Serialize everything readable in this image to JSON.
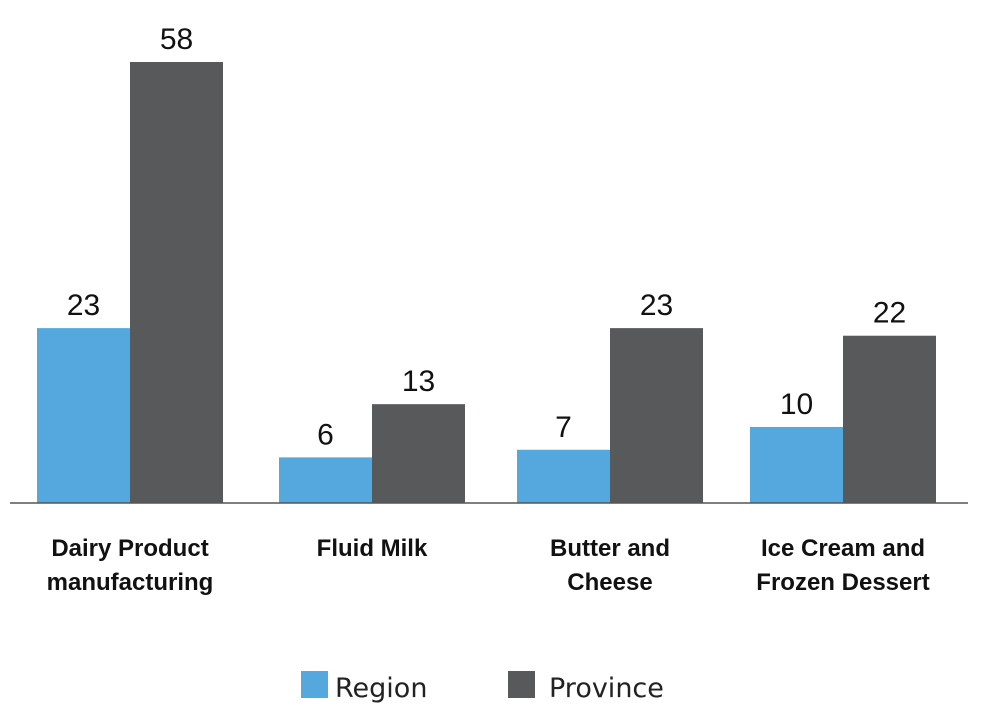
{
  "chart_data": {
    "type": "bar",
    "categories": [
      [
        "Dairy Product",
        "manufacturing"
      ],
      [
        "Fluid Milk"
      ],
      [
        "Butter and",
        "Cheese"
      ],
      [
        "Ice Cream and",
        "Frozen Dessert"
      ]
    ],
    "series": [
      {
        "name": "Region",
        "values": [
          23,
          6,
          7,
          10
        ],
        "color": "#55A8DD"
      },
      {
        "name": "Province",
        "values": [
          58,
          13,
          23,
          22
        ],
        "color": "#58595B"
      }
    ],
    "title": "",
    "xlabel": "",
    "ylabel": "",
    "ylim": [
      0,
      58
    ],
    "grid": false,
    "legend": "bottom",
    "data_labels": true,
    "axis_color": "#555555"
  }
}
